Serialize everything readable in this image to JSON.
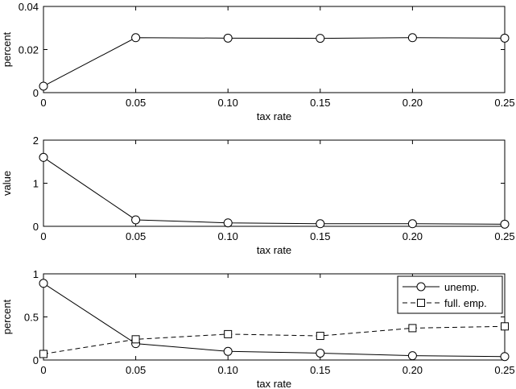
{
  "chart_data": [
    {
      "type": "line",
      "xlabel": "tax rate",
      "ylabel": "percent",
      "x": [
        0,
        0.05,
        0.1,
        0.15,
        0.2,
        0.25
      ],
      "xticks": [
        "0",
        "0.05",
        "0.10",
        "0.15",
        "0.20",
        "0.25"
      ],
      "xlim": [
        0,
        0.25
      ],
      "ylim": [
        0,
        0.04
      ],
      "yticks": [
        "0",
        "0.02",
        "0.04"
      ],
      "series": [
        {
          "marker": "circle",
          "dash": "solid",
          "values": [
            0.003,
            0.0255,
            0.0253,
            0.0252,
            0.0255,
            0.0253
          ]
        }
      ]
    },
    {
      "type": "line",
      "xlabel": "tax rate",
      "ylabel": "value",
      "x": [
        0,
        0.05,
        0.1,
        0.15,
        0.2,
        0.25
      ],
      "xticks": [
        "0",
        "0.05",
        "0.10",
        "0.15",
        "0.20",
        "0.25"
      ],
      "xlim": [
        0,
        0.25
      ],
      "ylim": [
        0,
        2
      ],
      "yticks": [
        "0",
        "1",
        "2"
      ],
      "series": [
        {
          "marker": "circle",
          "dash": "solid",
          "values": [
            1.6,
            0.15,
            0.08,
            0.06,
            0.06,
            0.05
          ]
        }
      ]
    },
    {
      "type": "line",
      "xlabel": "tax rate",
      "ylabel": "percent",
      "x": [
        0,
        0.05,
        0.1,
        0.15,
        0.2,
        0.25
      ],
      "xticks": [
        "0",
        "0.05",
        "0.10",
        "0.15",
        "0.20",
        "0.25"
      ],
      "xlim": [
        0,
        0.25
      ],
      "ylim": [
        0,
        1
      ],
      "yticks": [
        "0",
        "0.5",
        "1"
      ],
      "legend_position": "top-right",
      "series": [
        {
          "name": "unemp.",
          "marker": "circle",
          "dash": "solid",
          "values": [
            0.89,
            0.19,
            0.1,
            0.08,
            0.05,
            0.04
          ]
        },
        {
          "name": "full. emp.",
          "marker": "square",
          "dash": "dashed",
          "values": [
            0.07,
            0.24,
            0.3,
            0.28,
            0.37,
            0.39
          ]
        }
      ]
    }
  ]
}
